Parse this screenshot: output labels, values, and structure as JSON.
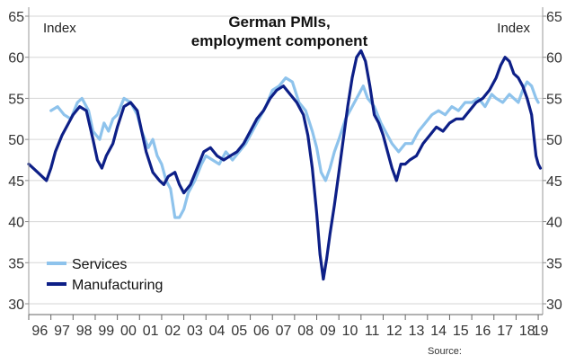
{
  "chart_data": {
    "type": "line",
    "title": "German PMIs, employment component",
    "left_unit_label": "Index",
    "right_unit_label": "Index",
    "ylim": [
      30,
      65
    ],
    "yticks": [
      30,
      35,
      40,
      45,
      50,
      55,
      60,
      65
    ],
    "xlim": [
      1996,
      2019.2
    ],
    "xticks": [
      {
        "label": "96",
        "x": 1996.5
      },
      {
        "label": "97",
        "x": 1997.5
      },
      {
        "label": "98",
        "x": 1998.5
      },
      {
        "label": "99",
        "x": 1999.5
      },
      {
        "label": "00",
        "x": 2000.5
      },
      {
        "label": "01",
        "x": 2001.5
      },
      {
        "label": "02",
        "x": 2002.5
      },
      {
        "label": "03",
        "x": 2003.5
      },
      {
        "label": "04",
        "x": 2004.5
      },
      {
        "label": "05",
        "x": 2005.5
      },
      {
        "label": "06",
        "x": 2006.5
      },
      {
        "label": "07",
        "x": 2007.5
      },
      {
        "label": "08",
        "x": 2008.5
      },
      {
        "label": "09",
        "x": 2009.5
      },
      {
        "label": "10",
        "x": 2010.5
      },
      {
        "label": "11",
        "x": 2011.5
      },
      {
        "label": "12",
        "x": 2012.5
      },
      {
        "label": "13",
        "x": 2013.5
      },
      {
        "label": "14",
        "x": 2014.5
      },
      {
        "label": "15",
        "x": 2015.5
      },
      {
        "label": "16",
        "x": 2016.5
      },
      {
        "label": "17",
        "x": 2017.5
      },
      {
        "label": "18",
        "x": 2018.5
      },
      {
        "label": "19",
        "x": 2019.1
      }
    ],
    "grid": true,
    "legend_position": "bottom-left",
    "series": [
      {
        "name": "Services",
        "color": "#8ec3ec",
        "points": [
          [
            1997.0,
            53.5
          ],
          [
            1997.3,
            54.0
          ],
          [
            1997.6,
            53.0
          ],
          [
            1997.9,
            52.5
          ],
          [
            1998.2,
            54.5
          ],
          [
            1998.4,
            55.0
          ],
          [
            1998.7,
            53.5
          ],
          [
            1998.9,
            51.0
          ],
          [
            1999.2,
            50.0
          ],
          [
            1999.4,
            52.0
          ],
          [
            1999.6,
            51.0
          ],
          [
            1999.8,
            52.5
          ],
          [
            2000.0,
            53.0
          ],
          [
            2000.3,
            55.0
          ],
          [
            2000.6,
            54.5
          ],
          [
            2000.9,
            53.0
          ],
          [
            2001.1,
            51.0
          ],
          [
            2001.4,
            49.0
          ],
          [
            2001.6,
            50.0
          ],
          [
            2001.8,
            48.0
          ],
          [
            2002.0,
            47.0
          ],
          [
            2002.2,
            45.0
          ],
          [
            2002.4,
            44.0
          ],
          [
            2002.6,
            40.5
          ],
          [
            2002.8,
            40.5
          ],
          [
            2003.0,
            41.5
          ],
          [
            2003.2,
            43.5
          ],
          [
            2003.5,
            45.0
          ],
          [
            2003.8,
            47.0
          ],
          [
            2004.0,
            48.0
          ],
          [
            2004.3,
            47.5
          ],
          [
            2004.6,
            47.0
          ],
          [
            2004.9,
            48.5
          ],
          [
            2005.2,
            47.5
          ],
          [
            2005.5,
            48.5
          ],
          [
            2005.8,
            49.5
          ],
          [
            2006.1,
            51.0
          ],
          [
            2006.4,
            52.5
          ],
          [
            2006.7,
            54.0
          ],
          [
            2007.0,
            56.0
          ],
          [
            2007.3,
            56.5
          ],
          [
            2007.6,
            57.5
          ],
          [
            2007.9,
            57.0
          ],
          [
            2008.2,
            54.5
          ],
          [
            2008.5,
            53.5
          ],
          [
            2008.8,
            51.0
          ],
          [
            2009.0,
            49.0
          ],
          [
            2009.2,
            46.0
          ],
          [
            2009.4,
            45.0
          ],
          [
            2009.6,
            46.5
          ],
          [
            2009.8,
            48.5
          ],
          [
            2010.0,
            50.0
          ],
          [
            2010.3,
            52.5
          ],
          [
            2010.6,
            54.0
          ],
          [
            2010.9,
            55.5
          ],
          [
            2011.1,
            56.5
          ],
          [
            2011.3,
            55.0
          ],
          [
            2011.6,
            54.0
          ],
          [
            2011.9,
            52.0
          ],
          [
            2012.1,
            51.0
          ],
          [
            2012.4,
            49.5
          ],
          [
            2012.7,
            48.5
          ],
          [
            2013.0,
            49.5
          ],
          [
            2013.3,
            49.5
          ],
          [
            2013.6,
            51.0
          ],
          [
            2013.9,
            52.0
          ],
          [
            2014.2,
            53.0
          ],
          [
            2014.5,
            53.5
          ],
          [
            2014.8,
            53.0
          ],
          [
            2015.1,
            54.0
          ],
          [
            2015.4,
            53.5
          ],
          [
            2015.7,
            54.5
          ],
          [
            2016.0,
            54.5
          ],
          [
            2016.3,
            55.0
          ],
          [
            2016.6,
            54.0
          ],
          [
            2016.9,
            55.5
          ],
          [
            2017.1,
            55.0
          ],
          [
            2017.4,
            54.5
          ],
          [
            2017.7,
            55.5
          ],
          [
            2017.9,
            55.0
          ],
          [
            2018.1,
            54.5
          ],
          [
            2018.3,
            56.0
          ],
          [
            2018.5,
            57.0
          ],
          [
            2018.7,
            56.5
          ],
          [
            2018.9,
            55.0
          ],
          [
            2019.0,
            54.5
          ]
        ]
      },
      {
        "name": "Manufacturing",
        "color": "#0d1f87",
        "points": [
          [
            1996.0,
            47.0
          ],
          [
            1996.2,
            46.5
          ],
          [
            1996.4,
            46.0
          ],
          [
            1996.6,
            45.5
          ],
          [
            1996.8,
            45.0
          ],
          [
            1997.0,
            46.5
          ],
          [
            1997.2,
            48.5
          ],
          [
            1997.5,
            50.5
          ],
          [
            1997.8,
            52.0
          ],
          [
            1998.0,
            53.0
          ],
          [
            1998.3,
            54.0
          ],
          [
            1998.6,
            53.5
          ],
          [
            1998.9,
            50.0
          ],
          [
            1999.1,
            47.5
          ],
          [
            1999.3,
            46.5
          ],
          [
            1999.5,
            48.0
          ],
          [
            1999.8,
            49.5
          ],
          [
            2000.0,
            51.5
          ],
          [
            2000.3,
            54.0
          ],
          [
            2000.6,
            54.5
          ],
          [
            2000.9,
            53.5
          ],
          [
            2001.1,
            51.0
          ],
          [
            2001.3,
            48.5
          ],
          [
            2001.6,
            46.0
          ],
          [
            2001.9,
            45.0
          ],
          [
            2002.1,
            44.5
          ],
          [
            2002.3,
            45.5
          ],
          [
            2002.6,
            46.0
          ],
          [
            2002.8,
            44.5
          ],
          [
            2003.0,
            43.5
          ],
          [
            2003.3,
            44.5
          ],
          [
            2003.6,
            46.5
          ],
          [
            2003.9,
            48.5
          ],
          [
            2004.2,
            49.0
          ],
          [
            2004.5,
            48.0
          ],
          [
            2004.8,
            47.5
          ],
          [
            2005.1,
            48.0
          ],
          [
            2005.4,
            48.5
          ],
          [
            2005.7,
            49.5
          ],
          [
            2006.0,
            51.0
          ],
          [
            2006.3,
            52.5
          ],
          [
            2006.6,
            53.5
          ],
          [
            2006.9,
            55.0
          ],
          [
            2007.2,
            56.0
          ],
          [
            2007.5,
            56.5
          ],
          [
            2007.8,
            55.5
          ],
          [
            2008.1,
            54.5
          ],
          [
            2008.4,
            53.0
          ],
          [
            2008.6,
            50.5
          ],
          [
            2008.8,
            46.5
          ],
          [
            2009.0,
            41.0
          ],
          [
            2009.15,
            36.0
          ],
          [
            2009.3,
            33.0
          ],
          [
            2009.45,
            35.5
          ],
          [
            2009.6,
            38.5
          ],
          [
            2009.8,
            42.0
          ],
          [
            2010.0,
            46.0
          ],
          [
            2010.2,
            50.0
          ],
          [
            2010.4,
            54.0
          ],
          [
            2010.6,
            57.5
          ],
          [
            2010.8,
            60.0
          ],
          [
            2011.0,
            60.8
          ],
          [
            2011.2,
            59.5
          ],
          [
            2011.4,
            56.5
          ],
          [
            2011.6,
            53.0
          ],
          [
            2011.8,
            52.0
          ],
          [
            2012.0,
            50.5
          ],
          [
            2012.2,
            48.5
          ],
          [
            2012.4,
            46.5
          ],
          [
            2012.6,
            45.0
          ],
          [
            2012.8,
            47.0
          ],
          [
            2013.0,
            47.0
          ],
          [
            2013.2,
            47.5
          ],
          [
            2013.5,
            48.0
          ],
          [
            2013.8,
            49.5
          ],
          [
            2014.1,
            50.5
          ],
          [
            2014.4,
            51.5
          ],
          [
            2014.7,
            51.0
          ],
          [
            2015.0,
            52.0
          ],
          [
            2015.3,
            52.5
          ],
          [
            2015.6,
            52.5
          ],
          [
            2015.9,
            53.5
          ],
          [
            2016.2,
            54.5
          ],
          [
            2016.5,
            55.0
          ],
          [
            2016.8,
            56.0
          ],
          [
            2017.1,
            57.5
          ],
          [
            2017.3,
            59.0
          ],
          [
            2017.5,
            60.0
          ],
          [
            2017.7,
            59.5
          ],
          [
            2017.9,
            58.0
          ],
          [
            2018.1,
            57.5
          ],
          [
            2018.3,
            56.5
          ],
          [
            2018.5,
            55.0
          ],
          [
            2018.7,
            53.0
          ],
          [
            2018.8,
            50.5
          ],
          [
            2018.9,
            48.0
          ],
          [
            2019.0,
            47.0
          ],
          [
            2019.1,
            46.5
          ]
        ]
      }
    ]
  },
  "source_label": "Source:"
}
